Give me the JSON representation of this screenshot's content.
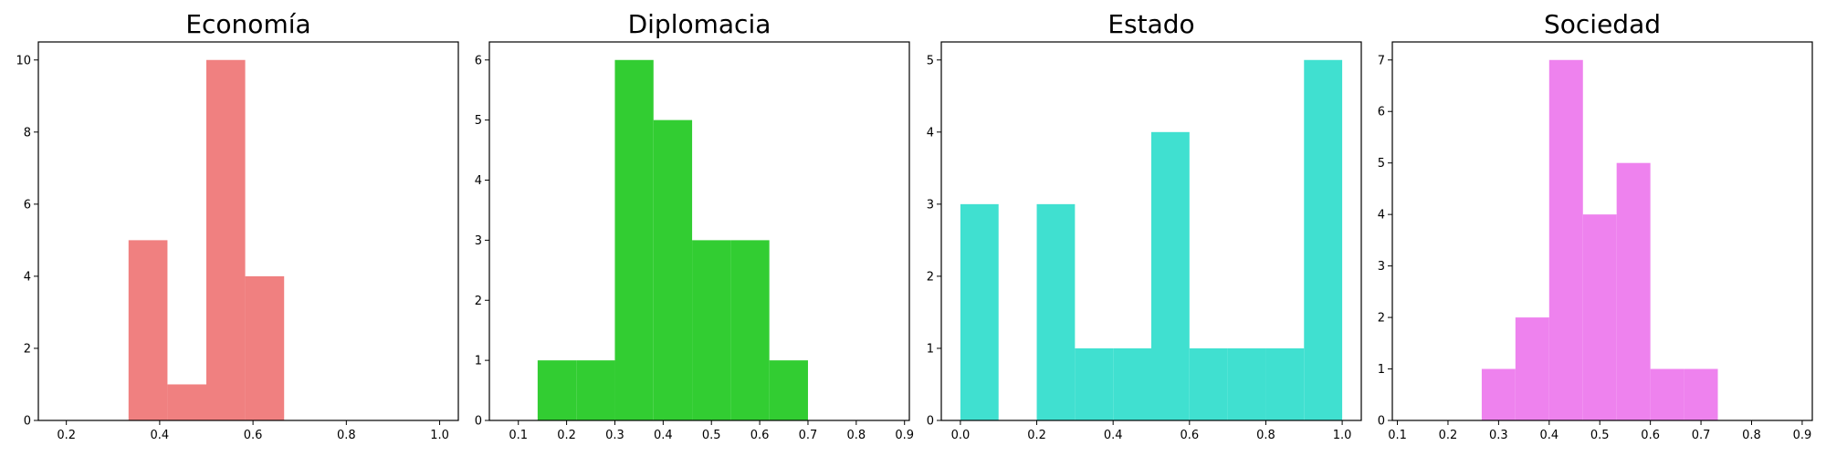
{
  "chart_data": [
    {
      "type": "bar",
      "title": "Economía",
      "color": "#f08080",
      "xlim": [
        0.14,
        1.04
      ],
      "ylim": [
        0,
        10.5
      ],
      "xticks": [
        "0.2",
        "0.4",
        "0.6",
        "0.8",
        "1.0"
      ],
      "yticks": [
        "0",
        "2",
        "4",
        "6",
        "8",
        "10"
      ],
      "bins": [
        {
          "x0": 0.3333,
          "x1": 0.4167,
          "count": 5
        },
        {
          "x0": 0.4167,
          "x1": 0.5,
          "count": 1
        },
        {
          "x0": 0.5,
          "x1": 0.5833,
          "count": 10
        },
        {
          "x0": 0.5833,
          "x1": 0.6667,
          "count": 4
        }
      ]
    },
    {
      "type": "bar",
      "title": "Diplomacia",
      "color": "#32cd32",
      "xlim": [
        0.04,
        0.91
      ],
      "ylim": [
        0,
        6.3
      ],
      "xticks": [
        "0.1",
        "0.2",
        "0.3",
        "0.4",
        "0.5",
        "0.6",
        "0.7",
        "0.8",
        "0.9"
      ],
      "yticks": [
        "0",
        "1",
        "2",
        "3",
        "4",
        "5",
        "6"
      ],
      "bins": [
        {
          "x0": 0.14,
          "x1": 0.22,
          "count": 1
        },
        {
          "x0": 0.22,
          "x1": 0.3,
          "count": 1
        },
        {
          "x0": 0.3,
          "x1": 0.38,
          "count": 6
        },
        {
          "x0": 0.38,
          "x1": 0.46,
          "count": 5
        },
        {
          "x0": 0.46,
          "x1": 0.54,
          "count": 3
        },
        {
          "x0": 0.54,
          "x1": 0.62,
          "count": 3
        },
        {
          "x0": 0.62,
          "x1": 0.7,
          "count": 1
        }
      ]
    },
    {
      "type": "bar",
      "title": "Estado",
      "color": "#40e0d0",
      "xlim": [
        -0.05,
        1.05
      ],
      "ylim": [
        0,
        5.25
      ],
      "xticks": [
        "0.0",
        "0.2",
        "0.4",
        "0.6",
        "0.8",
        "1.0"
      ],
      "yticks": [
        "0",
        "1",
        "2",
        "3",
        "4",
        "5"
      ],
      "bins": [
        {
          "x0": 0.0,
          "x1": 0.1,
          "count": 3
        },
        {
          "x0": 0.1,
          "x1": 0.2,
          "count": 0
        },
        {
          "x0": 0.2,
          "x1": 0.3,
          "count": 3
        },
        {
          "x0": 0.3,
          "x1": 0.4,
          "count": 1
        },
        {
          "x0": 0.4,
          "x1": 0.5,
          "count": 1
        },
        {
          "x0": 0.5,
          "x1": 0.6,
          "count": 4
        },
        {
          "x0": 0.6,
          "x1": 0.7,
          "count": 1
        },
        {
          "x0": 0.7,
          "x1": 0.8,
          "count": 1
        },
        {
          "x0": 0.8,
          "x1": 0.9,
          "count": 1
        },
        {
          "x0": 0.9,
          "x1": 1.0,
          "count": 5
        }
      ]
    },
    {
      "type": "bar",
      "title": "Sociedad",
      "color": "#ee82ee",
      "xlim": [
        0.09,
        0.92
      ],
      "ylim": [
        0,
        7.35
      ],
      "xticks": [
        "0.1",
        "0.2",
        "0.3",
        "0.4",
        "0.5",
        "0.6",
        "0.7",
        "0.8",
        "0.9"
      ],
      "yticks": [
        "0",
        "1",
        "2",
        "3",
        "4",
        "5",
        "6",
        "7"
      ],
      "bins": [
        {
          "x0": 0.2667,
          "x1": 0.3333,
          "count": 1
        },
        {
          "x0": 0.3333,
          "x1": 0.4,
          "count": 2
        },
        {
          "x0": 0.4,
          "x1": 0.4667,
          "count": 7
        },
        {
          "x0": 0.4667,
          "x1": 0.5333,
          "count": 4
        },
        {
          "x0": 0.5333,
          "x1": 0.6,
          "count": 5
        },
        {
          "x0": 0.6,
          "x1": 0.6667,
          "count": 1
        },
        {
          "x0": 0.6667,
          "x1": 0.7333,
          "count": 1
        }
      ]
    }
  ]
}
